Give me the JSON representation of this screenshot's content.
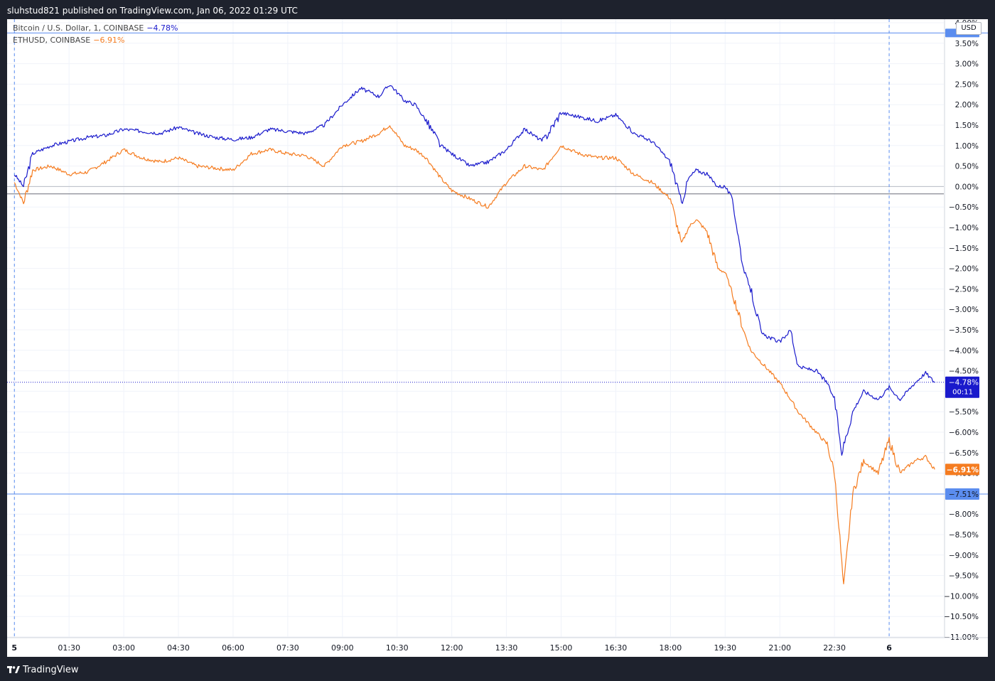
{
  "header": {
    "publisher_text": "sluhstud821 published on TradingView.com, Jan 06, 2022 01:29 UTC"
  },
  "footer": {
    "brand": "TradingView"
  },
  "legend": {
    "btc_label": "Bitcoin / U.S. Dollar, 1, COINBASE",
    "btc_value": "−4.78%",
    "eth_label": "ETHUSD, COINBASE",
    "eth_value": "−6.91%"
  },
  "currency_badge": "USD",
  "price_labels": {
    "btc_value": "−4.78%",
    "btc_countdown": "00:11",
    "eth_value": "−6.91%",
    "low_line_value": "−7.51%"
  },
  "colors": {
    "btc": "#1a1acc",
    "eth": "#f57c20",
    "guide": "#5b8def",
    "grid": "#f0f3fa",
    "axis_text": "#131722",
    "frame": "#1e222d"
  },
  "chart_data": {
    "type": "line",
    "x_ticks": [
      "5",
      "01:30",
      "03:00",
      "04:30",
      "06:00",
      "07:30",
      "09:00",
      "10:30",
      "12:00",
      "13:30",
      "15:00",
      "16:30",
      "18:00",
      "19:30",
      "21:00",
      "22:30",
      "6"
    ],
    "x_tick_hours": [
      0,
      1.5,
      3,
      4.5,
      6,
      7.5,
      9,
      10.5,
      12,
      13.5,
      15,
      16.5,
      18,
      19.5,
      21,
      22.5,
      24
    ],
    "bold_x_ticks": [
      "5",
      "6"
    ],
    "y_ticks": [
      "4.00%",
      "3.50%",
      "3.00%",
      "2.50%",
      "2.00%",
      "1.50%",
      "1.00%",
      "0.50%",
      "0.00%",
      "−0.50%",
      "−1.00%",
      "−1.50%",
      "−2.00%",
      "−2.50%",
      "−3.00%",
      "−3.50%",
      "−4.00%",
      "−4.50%",
      "−5.00%",
      "−5.50%",
      "−6.00%",
      "−6.50%",
      "−7.00%",
      "−7.50%",
      "−8.00%",
      "−8.50%",
      "−9.00%",
      "−9.50%",
      "−10.00%",
      "−10.50%",
      "−11.00%"
    ],
    "y_tick_values": [
      4,
      3.5,
      3,
      2.5,
      2,
      1.5,
      1,
      0.5,
      0,
      -0.5,
      -1,
      -1.5,
      -2,
      -2.5,
      -3,
      -3.5,
      -4,
      -4.5,
      -5,
      -5.5,
      -6,
      -6.5,
      -7,
      -7.5,
      -8,
      -8.5,
      -9,
      -9.5,
      -10,
      -10.5,
      -11
    ],
    "ylim": [
      -11,
      4
    ],
    "xlim_hours": [
      -0.2,
      25.5
    ],
    "grid": true,
    "reference_lines": {
      "zero": 0,
      "previous_close": -0.18,
      "upper_guide": 3.75,
      "lower_guide": -7.51,
      "vertical_hours": [
        0,
        24
      ]
    },
    "series": [
      {
        "name": "Bitcoin / U.S. Dollar, 1, COINBASE",
        "x_hours": [
          0,
          0.25,
          0.5,
          1,
          1.5,
          2,
          2.5,
          3,
          3.5,
          4,
          4.5,
          5,
          5.5,
          6,
          6.5,
          7,
          7.5,
          8,
          8.5,
          9,
          9.5,
          10,
          10.3,
          10.7,
          11,
          11.3,
          11.7,
          12,
          12.5,
          13,
          13.5,
          14,
          14.5,
          15,
          15.5,
          16,
          16.5,
          17,
          17.5,
          18,
          18.3,
          18.5,
          18.7,
          19,
          19.3,
          19.5,
          19.7,
          20,
          20.2,
          20.5,
          21,
          21.3,
          21.5,
          22,
          22.3,
          22.5,
          22.7,
          23,
          23.3,
          23.7,
          24,
          24.3,
          24.7,
          25,
          25.25
        ],
        "values": [
          0.3,
          0.0,
          0.8,
          1.0,
          1.1,
          1.2,
          1.25,
          1.4,
          1.35,
          1.3,
          1.45,
          1.3,
          1.2,
          1.15,
          1.2,
          1.4,
          1.35,
          1.3,
          1.5,
          2.0,
          2.4,
          2.2,
          2.5,
          2.1,
          2.0,
          1.6,
          1.0,
          0.8,
          0.5,
          0.6,
          0.9,
          1.4,
          1.1,
          1.8,
          1.7,
          1.6,
          1.75,
          1.3,
          1.1,
          0.6,
          -0.4,
          0.2,
          0.4,
          0.3,
          0.0,
          0.0,
          -0.3,
          -2.0,
          -2.5,
          -3.6,
          -3.8,
          -3.5,
          -4.4,
          -4.5,
          -4.8,
          -5.2,
          -6.5,
          -5.5,
          -5.0,
          -5.2,
          -4.9,
          -5.2,
          -4.8,
          -4.55,
          -4.78
        ]
      },
      {
        "name": "ETHUSD, COINBASE",
        "x_hours": [
          0,
          0.25,
          0.5,
          1,
          1.5,
          2,
          2.5,
          3,
          3.5,
          4,
          4.5,
          5,
          5.5,
          6,
          6.5,
          7,
          7.5,
          8,
          8.5,
          9,
          9.5,
          10,
          10.3,
          10.7,
          11,
          11.3,
          11.7,
          12,
          12.5,
          13,
          13.5,
          14,
          14.5,
          15,
          15.5,
          16,
          16.5,
          17,
          17.5,
          18,
          18.3,
          18.5,
          18.7,
          19,
          19.3,
          19.5,
          19.7,
          20,
          20.2,
          20.5,
          21,
          21.3,
          21.5,
          22,
          22.3,
          22.5,
          22.65,
          22.75,
          23,
          23.3,
          23.7,
          24,
          24.3,
          24.7,
          25,
          25.25
        ],
        "values": [
          0.1,
          -0.4,
          0.4,
          0.5,
          0.3,
          0.35,
          0.6,
          0.9,
          0.7,
          0.6,
          0.7,
          0.5,
          0.45,
          0.4,
          0.8,
          0.9,
          0.8,
          0.75,
          0.5,
          1.0,
          1.1,
          1.3,
          1.5,
          1.0,
          0.9,
          0.7,
          0.2,
          -0.1,
          -0.3,
          -0.5,
          0.1,
          0.5,
          0.4,
          1.0,
          0.8,
          0.7,
          0.7,
          0.3,
          0.1,
          -0.3,
          -1.4,
          -1.0,
          -0.8,
          -1.1,
          -2.0,
          -2.1,
          -2.6,
          -3.5,
          -4.0,
          -4.3,
          -4.8,
          -5.2,
          -5.5,
          -6.0,
          -6.3,
          -7.0,
          -8.6,
          -9.8,
          -7.5,
          -6.7,
          -7.0,
          -6.2,
          -7.0,
          -6.7,
          -6.6,
          -6.91
        ]
      }
    ]
  }
}
